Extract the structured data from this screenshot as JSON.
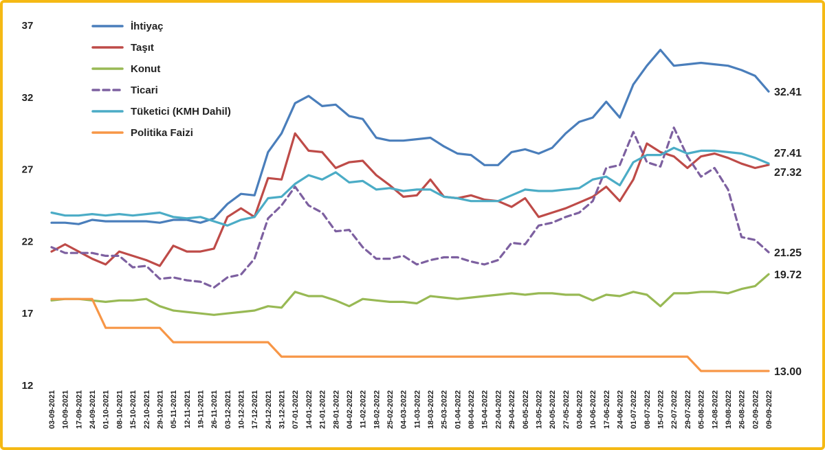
{
  "chart_data": {
    "type": "line",
    "title": "",
    "xlabel": "",
    "ylabel": "",
    "ylim": [
      12,
      37
    ],
    "yticks": [
      "12",
      "17",
      "22",
      "27",
      "32",
      "37"
    ],
    "grid": false,
    "legend": "top-left",
    "x": [
      "03-09-2021",
      "10-09-2021",
      "17-09-2021",
      "24-09-2021",
      "01-10-2021",
      "08-10-2021",
      "15-10-2021",
      "22-10-2021",
      "29-10-2021",
      "05-11-2021",
      "12-11-2021",
      "19-11-2021",
      "26-11-2021",
      "03-12-2021",
      "10-12-2021",
      "17-12-2021",
      "24-12-2021",
      "31-12-2021",
      "07-01-2022",
      "14-01-2022",
      "21-01-2022",
      "28-01-2022",
      "04-02-2022",
      "11-02-2022",
      "18-02-2022",
      "25-02-2022",
      "04-03-2022",
      "11-03-2022",
      "18-03-2022",
      "25-03-2022",
      "01-04-2022",
      "08-04-2022",
      "15-04-2022",
      "22-04-2022",
      "29-04-2022",
      "06-05-2022",
      "13-05-2022",
      "20-05-2022",
      "27-05-2022",
      "03-06-2022",
      "10-06-2022",
      "17-06-2022",
      "24-06-2022",
      "01-07-2022",
      "08-07-2022",
      "15-07-2022",
      "22-07-2022",
      "29-07-2022",
      "05-08-2022",
      "12-08-2022",
      "19-08-2022",
      "26-08-2022",
      "02-09-2022",
      "09-09-2022"
    ],
    "series": [
      {
        "name": "İhtiyaç",
        "color": "#4a7ebb",
        "dashed": false,
        "end_label": "32.41",
        "values": [
          23.3,
          23.3,
          23.2,
          23.5,
          23.4,
          23.4,
          23.4,
          23.4,
          23.3,
          23.5,
          23.5,
          23.3,
          23.6,
          24.6,
          25.3,
          25.2,
          28.2,
          29.5,
          31.6,
          32.1,
          31.4,
          31.5,
          30.7,
          30.5,
          29.2,
          29.0,
          29.0,
          29.1,
          29.2,
          28.6,
          28.1,
          28.0,
          27.3,
          27.3,
          28.2,
          28.4,
          28.1,
          28.5,
          29.5,
          30.3,
          30.6,
          31.7,
          30.6,
          32.9,
          34.2,
          35.3,
          34.2,
          34.3,
          34.4,
          34.3,
          34.2,
          33.9,
          33.5,
          32.41
        ]
      },
      {
        "name": "Taşıt",
        "color": "#be4b48",
        "dashed": false,
        "end_label": "27.32",
        "values": [
          21.3,
          21.8,
          21.3,
          20.8,
          20.4,
          21.3,
          21.0,
          20.7,
          20.3,
          21.7,
          21.3,
          21.3,
          21.5,
          23.7,
          24.3,
          23.7,
          26.4,
          26.3,
          29.5,
          28.3,
          28.2,
          27.1,
          27.5,
          27.6,
          26.6,
          25.9,
          25.1,
          25.2,
          26.3,
          25.1,
          25.0,
          25.2,
          24.9,
          24.8,
          24.4,
          25.0,
          23.7,
          24.0,
          24.3,
          24.7,
          25.1,
          25.8,
          24.8,
          26.3,
          28.8,
          28.2,
          27.9,
          27.1,
          27.9,
          28.1,
          27.8,
          27.4,
          27.1,
          27.32
        ]
      },
      {
        "name": "Konut",
        "color": "#98b954",
        "dashed": false,
        "end_label": "19.72",
        "values": [
          17.9,
          18.0,
          18.0,
          17.9,
          17.8,
          17.9,
          17.9,
          18.0,
          17.5,
          17.2,
          17.1,
          17.0,
          16.9,
          17.0,
          17.1,
          17.2,
          17.5,
          17.4,
          18.5,
          18.2,
          18.2,
          17.9,
          17.5,
          18.0,
          17.9,
          17.8,
          17.8,
          17.7,
          18.2,
          18.1,
          18.0,
          18.1,
          18.2,
          18.3,
          18.4,
          18.3,
          18.4,
          18.4,
          18.3,
          18.3,
          17.9,
          18.3,
          18.2,
          18.5,
          18.3,
          17.5,
          18.4,
          18.4,
          18.5,
          18.5,
          18.4,
          18.7,
          18.9,
          19.72
        ]
      },
      {
        "name": "Ticari",
        "color": "#7d60a0",
        "dashed": true,
        "end_label": "21.25",
        "values": [
          21.6,
          21.2,
          21.2,
          21.2,
          21.0,
          21.0,
          20.2,
          20.3,
          19.4,
          19.5,
          19.3,
          19.2,
          18.8,
          19.5,
          19.7,
          20.8,
          23.6,
          24.5,
          25.8,
          24.5,
          24.0,
          22.7,
          22.8,
          21.6,
          20.8,
          20.8,
          21.0,
          20.4,
          20.7,
          20.9,
          20.9,
          20.6,
          20.4,
          20.7,
          21.9,
          21.8,
          23.1,
          23.3,
          23.7,
          24.0,
          24.8,
          27.1,
          27.3,
          29.6,
          27.5,
          27.2,
          29.9,
          27.9,
          26.5,
          27.1,
          25.6,
          22.3,
          22.1,
          21.25
        ]
      },
      {
        "name": "Tüketici (KMH Dahil)",
        "color": "#4bacc6",
        "dashed": false,
        "end_label": "27.41",
        "values": [
          24.0,
          23.8,
          23.8,
          23.9,
          23.8,
          23.9,
          23.8,
          23.9,
          24.0,
          23.7,
          23.6,
          23.7,
          23.4,
          23.1,
          23.5,
          23.7,
          25.0,
          25.1,
          26.0,
          26.6,
          26.3,
          26.8,
          26.1,
          26.2,
          25.6,
          25.7,
          25.5,
          25.6,
          25.6,
          25.1,
          25.0,
          24.8,
          24.8,
          24.8,
          25.2,
          25.6,
          25.5,
          25.5,
          25.6,
          25.7,
          26.3,
          26.5,
          25.9,
          27.5,
          28.0,
          28.0,
          28.5,
          28.1,
          28.3,
          28.3,
          28.2,
          28.1,
          27.8,
          27.41
        ]
      },
      {
        "name": "Politika Faizi",
        "color": "#f79646",
        "dashed": false,
        "end_label": "13.00",
        "values": [
          18,
          18,
          18,
          18,
          16,
          16,
          16,
          16,
          16,
          15,
          15,
          15,
          15,
          15,
          15,
          15,
          15,
          14,
          14,
          14,
          14,
          14,
          14,
          14,
          14,
          14,
          14,
          14,
          14,
          14,
          14,
          14,
          14,
          14,
          14,
          14,
          14,
          14,
          14,
          14,
          14,
          14,
          14,
          14,
          14,
          14,
          14,
          14,
          13,
          13,
          13,
          13,
          13,
          13.0
        ]
      }
    ]
  }
}
